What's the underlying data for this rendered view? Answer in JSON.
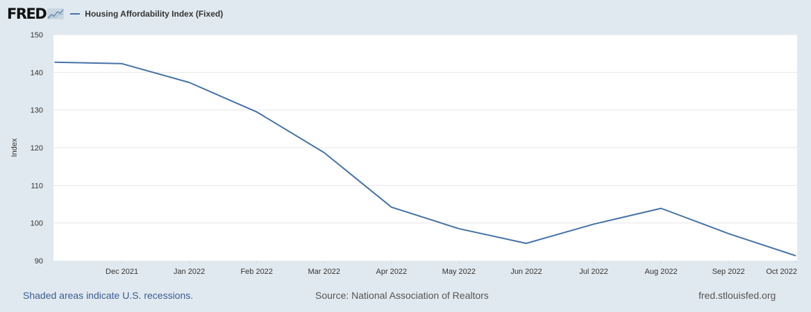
{
  "header": {
    "logo_text": "FRED",
    "logo_icon": "trend-line-icon",
    "series_label": "Housing Affordability Index (Fixed)"
  },
  "colors": {
    "page_background": "#e1e9f0",
    "plot_background": "#ffffff",
    "series_line": "#4572a7",
    "gridline": "#e6e6e6"
  },
  "footer": {
    "recession_note": "Shaded areas indicate U.S. recessions.",
    "source": "Source: National Association of Realtors",
    "site": "fred.stlouisfed.org"
  },
  "chart_data": {
    "type": "line",
    "title": "",
    "xlabel": "",
    "ylabel": "Index",
    "ylim": [
      90,
      150
    ],
    "y_ticks": [
      90,
      100,
      110,
      120,
      130,
      140,
      150
    ],
    "grid": true,
    "legend_position": "top-left",
    "x_tick_labels": [
      "Dec 2021",
      "Jan 2022",
      "Feb 2022",
      "Mar 2022",
      "Apr 2022",
      "May 2022",
      "Jun 2022",
      "Jul 2022",
      "Aug 2022",
      "Sep 2022",
      "Oct 2022"
    ],
    "series": [
      {
        "name": "Housing Affordability Index (Fixed)",
        "x": [
          "2021-11",
          "2021-12",
          "2022-01",
          "2022-02",
          "2022-03",
          "2022-04",
          "2022-05",
          "2022-06",
          "2022-07",
          "2022-08",
          "2022-09",
          "2022-10"
        ],
        "values": [
          142.7,
          142.3,
          137.3,
          129.5,
          118.7,
          104.2,
          98.5,
          94.6,
          99.7,
          103.9,
          97.2,
          91.3
        ]
      }
    ]
  }
}
